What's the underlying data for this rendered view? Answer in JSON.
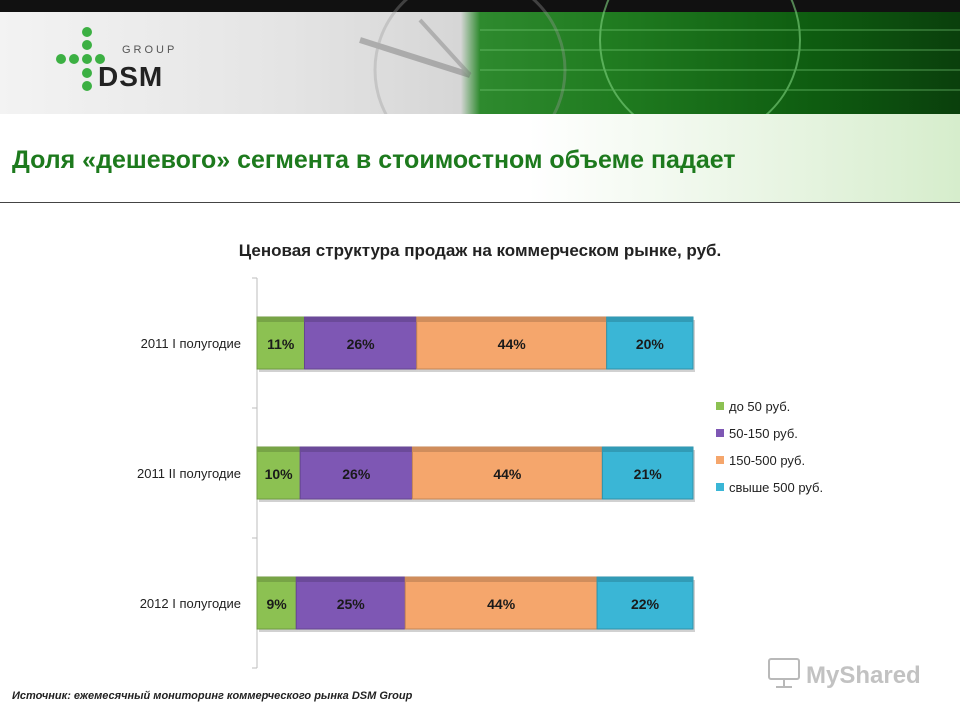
{
  "header": {
    "logo": {
      "brand": "DSM",
      "group": "GROUP"
    }
  },
  "page_title": "Доля «дешевого» сегмента в стоимостном объеме падает",
  "source": "Источник: ежемесячный мониторинг коммерческого рынка DSM Group",
  "watermark": "MyShared",
  "colors": {
    "title_green": "#1d7a1d",
    "series": [
      "#8cc152",
      "#7e57b4",
      "#f5a66c",
      "#3ab6d6"
    ]
  },
  "chart_data": {
    "type": "bar",
    "orientation": "horizontal",
    "stacked": true,
    "title": "Ценовая структура продаж на коммерческом рынке, руб.",
    "categories": [
      "2011 I полугодие",
      "2011 II полугодие",
      "2012 I полугодие"
    ],
    "series": [
      {
        "name": "до 50 руб.",
        "values": [
          11,
          10,
          9
        ],
        "labels": [
          "11%",
          "10%",
          "9%"
        ]
      },
      {
        "name": "50-150 руб.",
        "values": [
          26,
          26,
          25
        ],
        "labels": [
          "26%",
          "26%",
          "25%"
        ]
      },
      {
        "name": "150-500 руб.",
        "values": [
          44,
          44,
          44
        ],
        "labels": [
          "44%",
          "44%",
          "44%"
        ]
      },
      {
        "name": "свыше 500 руб.",
        "values": [
          20,
          21,
          22
        ],
        "labels": [
          "20%",
          "21%",
          "22%"
        ]
      }
    ],
    "legend_position": "right",
    "grid": false
  }
}
